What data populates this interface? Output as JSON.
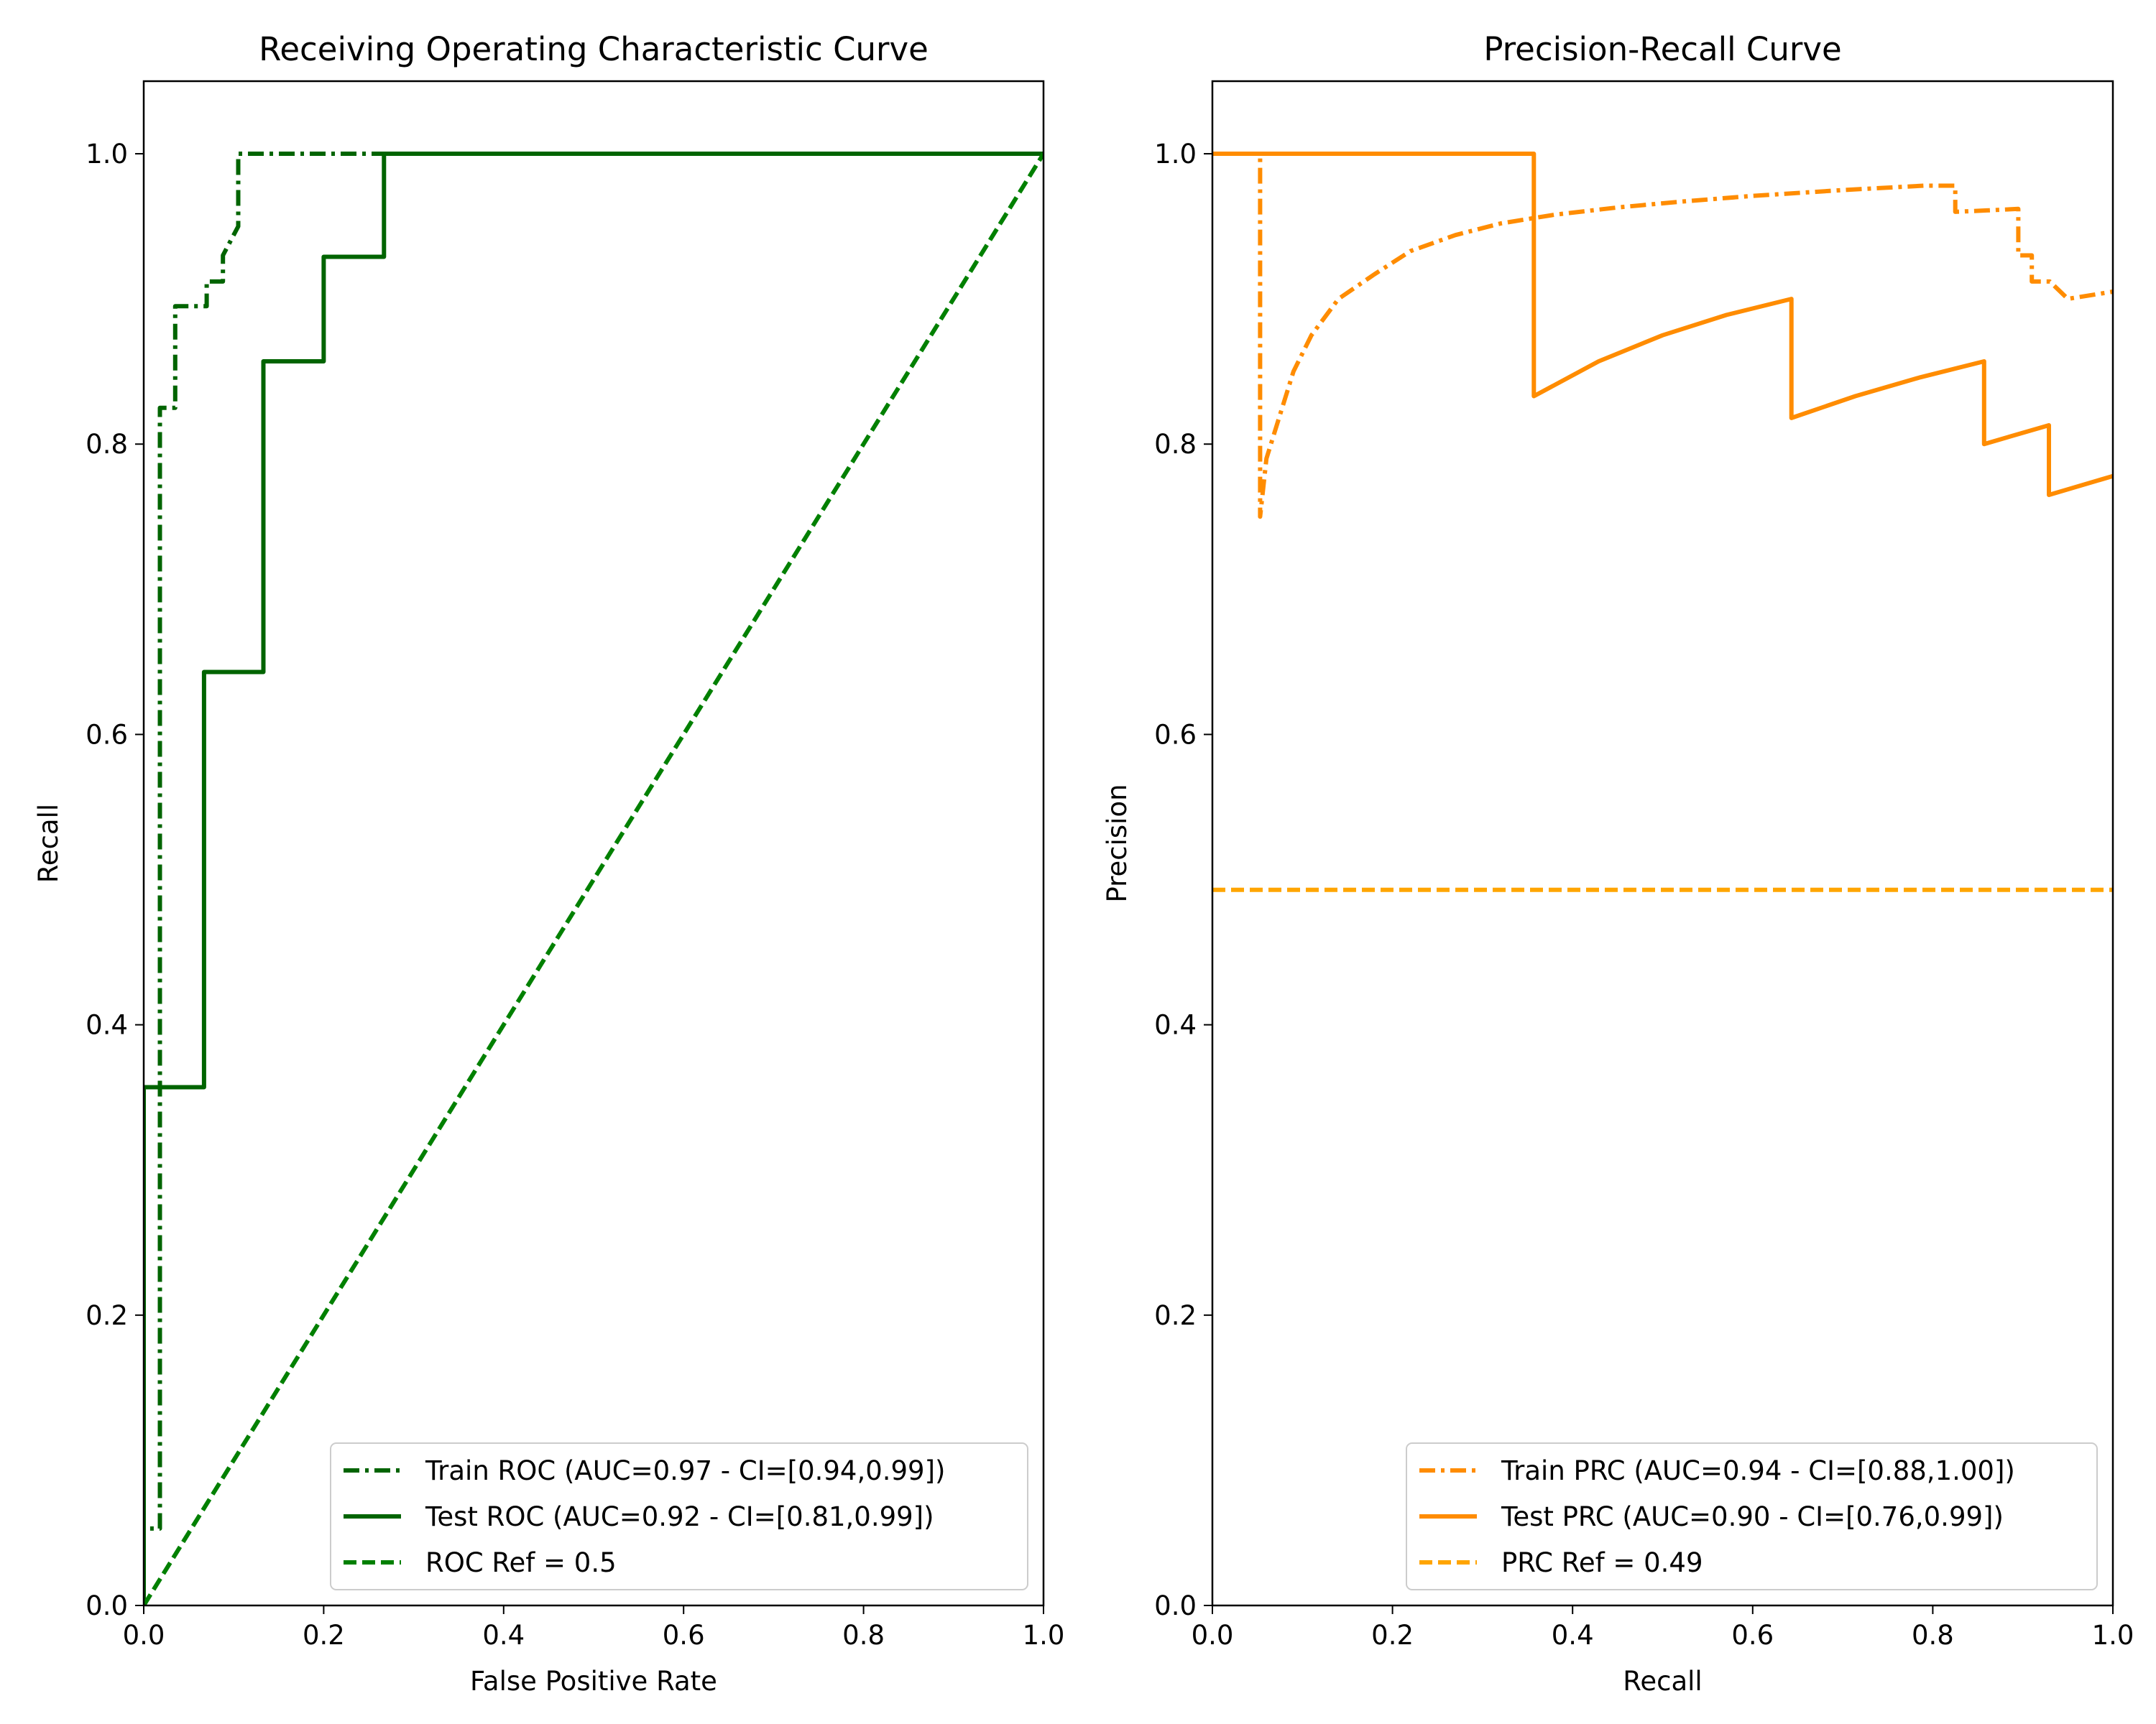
{
  "chart_data": [
    {
      "type": "line",
      "title": "Receiving Operating Characteristic Curve",
      "xlabel": "False Positive Rate",
      "ylabel": "Recall",
      "xlim": [
        0,
        1
      ],
      "ylim": [
        0,
        1.05
      ],
      "xticks": [
        "0.0",
        "0.2",
        "0.4",
        "0.6",
        "0.8",
        "1.0"
      ],
      "yticks": [
        "0.0",
        "0.2",
        "0.4",
        "0.6",
        "0.8",
        "1.0"
      ],
      "grid": false,
      "legend_position": "bottom-right",
      "series": [
        {
          "name": "Train ROC (AUC=0.97 - CI=[0.94,0.99])",
          "color": "#006400",
          "dash": "dashdot",
          "x": [
            0,
            0.0,
            0.018,
            0.018,
            0.035,
            0.035,
            0.07,
            0.07,
            0.088,
            0.088,
            0.105,
            0.105,
            0.2,
            1.0
          ],
          "y": [
            0,
            0.053,
            0.053,
            0.825,
            0.825,
            0.895,
            0.895,
            0.912,
            0.912,
            0.93,
            0.95,
            1.0,
            1.0,
            1.0
          ]
        },
        {
          "name": "Test ROC (AUC=0.92 - CI=[0.81,0.99])",
          "color": "#006400",
          "dash": "solid",
          "x": [
            0,
            0,
            0.067,
            0.067,
            0.133,
            0.133,
            0.2,
            0.2,
            0.267,
            0.267,
            1.0
          ],
          "y": [
            0,
            0.357,
            0.357,
            0.643,
            0.643,
            0.857,
            0.857,
            0.929,
            0.929,
            1.0,
            1.0
          ]
        },
        {
          "name": "ROC Ref = 0.5",
          "color": "#008000",
          "dash": "dashed",
          "x": [
            0,
            1
          ],
          "y": [
            0,
            1
          ]
        }
      ]
    },
    {
      "type": "line",
      "title": "Precision-Recall Curve",
      "xlabel": "Recall",
      "ylabel": "Precision",
      "xlim": [
        0,
        1
      ],
      "ylim": [
        0,
        1.05
      ],
      "xticks": [
        "0.0",
        "0.2",
        "0.4",
        "0.6",
        "0.8",
        "1.0"
      ],
      "yticks": [
        "0.0",
        "0.2",
        "0.4",
        "0.6",
        "0.8",
        "1.0"
      ],
      "grid": false,
      "legend_position": "bottom-right",
      "series": [
        {
          "name": "Train PRC (AUC=0.94 - CI=[0.88,1.00])",
          "color": "#ff8c00",
          "dash": "dashdot",
          "x": [
            0,
            0.053,
            0.053,
            0.06,
            0.07,
            0.09,
            0.11,
            0.14,
            0.18,
            0.22,
            0.27,
            0.32,
            0.38,
            0.45,
            0.52,
            0.6,
            0.7,
            0.79,
            0.825,
            0.825,
            0.86,
            0.895,
            0.895,
            0.91,
            0.91,
            0.93,
            0.95,
            1.0
          ],
          "y": [
            1.0,
            1.0,
            0.75,
            0.79,
            0.81,
            0.85,
            0.875,
            0.9,
            0.917,
            0.933,
            0.944,
            0.952,
            0.958,
            0.963,
            0.967,
            0.971,
            0.975,
            0.978,
            0.978,
            0.96,
            0.961,
            0.962,
            0.93,
            0.93,
            0.912,
            0.912,
            0.9,
            0.905
          ]
        },
        {
          "name": "Test PRC (AUC=0.90 - CI=[0.76,0.99])",
          "color": "#ff8c00",
          "dash": "solid",
          "x": [
            0,
            0.357,
            0.357,
            0.429,
            0.5,
            0.571,
            0.643,
            0.643,
            0.714,
            0.786,
            0.857,
            0.857,
            0.929,
            0.929,
            1.0
          ],
          "y": [
            1.0,
            1.0,
            0.833,
            0.857,
            0.875,
            0.889,
            0.9,
            0.818,
            0.833,
            0.846,
            0.857,
            0.8,
            0.813,
            0.765,
            0.778
          ]
        },
        {
          "name": "PRC Ref = 0.49",
          "color": "#ffa500",
          "dash": "dashed",
          "x": [
            0,
            1
          ],
          "y": [
            0.493,
            0.493
          ]
        }
      ]
    }
  ]
}
